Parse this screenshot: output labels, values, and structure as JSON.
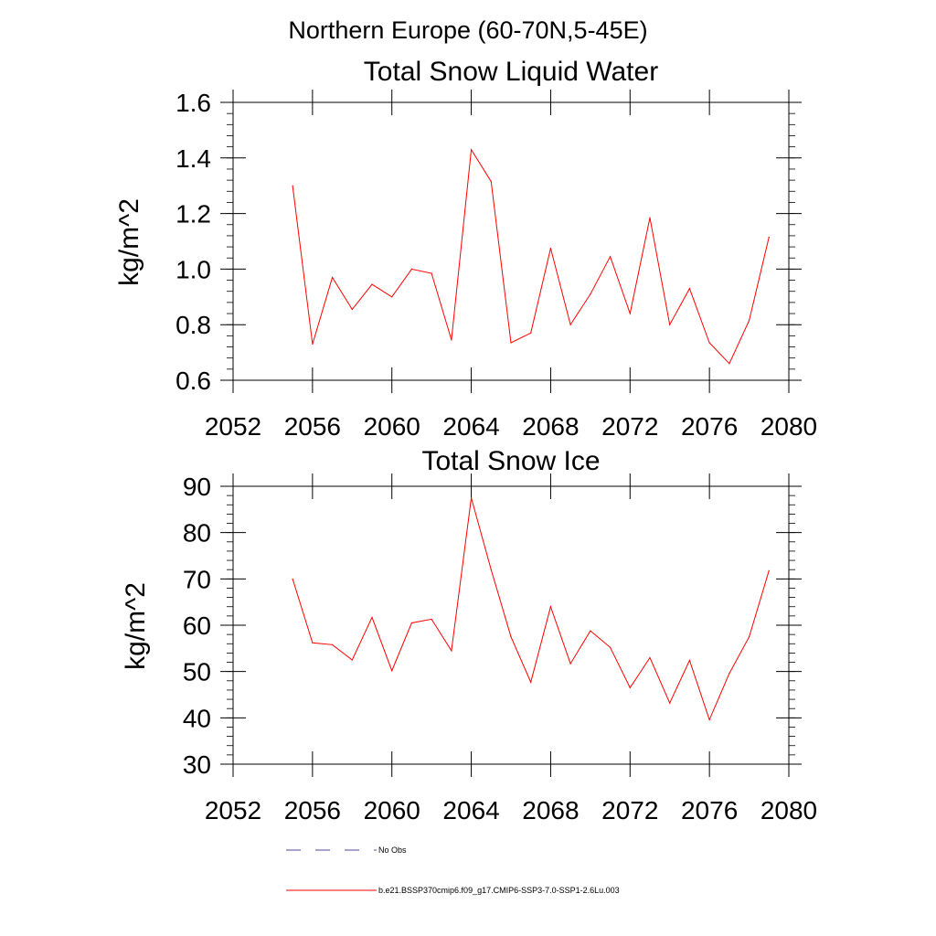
{
  "figure_title": "Northern Europe (60-70N,5-45E)",
  "legend": {
    "obs_label": "No Obs",
    "model_label": "b.e21.BSSP370cmip6.f09_g17.CMIP6-SSP3-7.0-SSP1-2.6Lu.003",
    "model_color": "#ff0000",
    "obs_color": "#4d4d99"
  },
  "chart_data": [
    {
      "type": "line",
      "title": "Total Snow Liquid Water",
      "xlabel": "",
      "ylabel": "kg/m^2",
      "xlim": [
        2052,
        2080
      ],
      "ylim": [
        0.6,
        1.6
      ],
      "x_ticks": [
        "2052",
        "2056",
        "2060",
        "2064",
        "2068",
        "2072",
        "2076",
        "2080"
      ],
      "y_ticks": [
        "0.6",
        "0.8",
        "1.0",
        "1.2",
        "1.4",
        "1.6"
      ],
      "x": [
        2055,
        2056,
        2057,
        2058,
        2059,
        2060,
        2061,
        2062,
        2063,
        2064,
        2065,
        2066,
        2067,
        2068,
        2069,
        2070,
        2071,
        2072,
        2073,
        2074,
        2075,
        2076,
        2077,
        2078,
        2079
      ],
      "series": [
        {
          "values": [
            1.3,
            0.73,
            0.97,
            0.855,
            0.945,
            0.9,
            1.0,
            0.985,
            0.745,
            1.43,
            1.315,
            0.735,
            0.77,
            1.075,
            0.8,
            0.91,
            1.045,
            0.84,
            1.185,
            0.8,
            0.93,
            0.735,
            0.66,
            0.815,
            1.115
          ],
          "color": "#ff0000"
        }
      ]
    },
    {
      "type": "line",
      "title": "Total Snow Ice",
      "xlabel": "",
      "ylabel": "kg/m^2",
      "xlim": [
        2052,
        2080
      ],
      "ylim": [
        30,
        90
      ],
      "x_ticks": [
        "2052",
        "2056",
        "2060",
        "2064",
        "2068",
        "2072",
        "2076",
        "2080"
      ],
      "y_ticks": [
        "30",
        "40",
        "50",
        "60",
        "70",
        "80",
        "90"
      ],
      "x": [
        2055,
        2056,
        2057,
        2058,
        2059,
        2060,
        2061,
        2062,
        2063,
        2064,
        2065,
        2066,
        2067,
        2068,
        2069,
        2070,
        2071,
        2072,
        2073,
        2074,
        2075,
        2076,
        2077,
        2078,
        2079
      ],
      "series": [
        {
          "values": [
            70.0,
            56.2,
            55.8,
            52.5,
            61.7,
            50.2,
            60.5,
            61.3,
            54.5,
            87.5,
            72.0,
            57.5,
            47.7,
            64.0,
            51.7,
            58.8,
            55.2,
            46.5,
            53.0,
            43.2,
            52.4,
            39.6,
            49.6,
            57.5,
            71.8
          ],
          "color": "#ff0000"
        }
      ]
    }
  ]
}
